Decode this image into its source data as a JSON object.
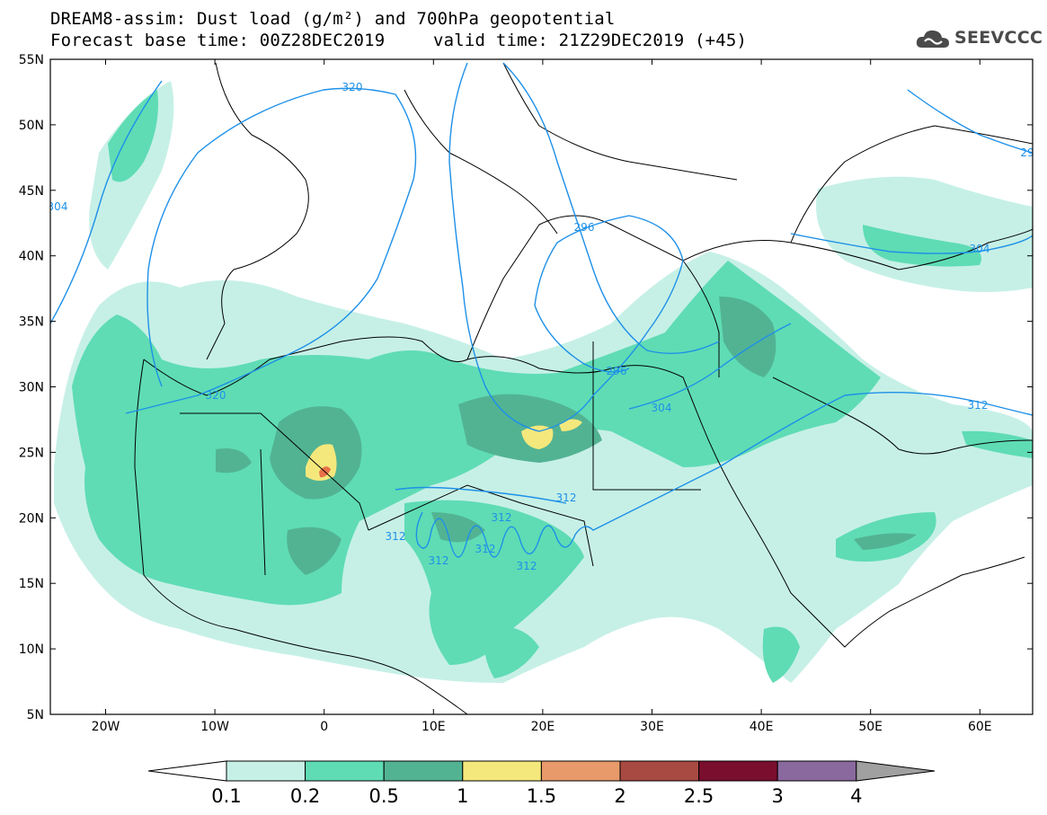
{
  "header": {
    "title": "DREAM8-assim: Dust load (g/m²) and 700hPa geopotential",
    "base_time": "Forecast base time: 00Z28DEC2019",
    "valid_time": "valid time: 21Z29DEC2019 (+45)"
  },
  "logo": {
    "text": "SEEVCCC",
    "icon": "cloud-icon"
  },
  "map": {
    "lat_labels": [
      "55N",
      "50N",
      "45N",
      "40N",
      "35N",
      "30N",
      "25N",
      "20N",
      "15N",
      "10N",
      "5N"
    ],
    "lon_labels": [
      "20W",
      "10W",
      "0",
      "10E",
      "20E",
      "30E",
      "40E",
      "50E",
      "60E"
    ],
    "contour_labels": [
      "320",
      "320",
      "304",
      "296",
      "296",
      "304",
      "304",
      "312",
      "312",
      "312",
      "312",
      "312",
      "312",
      "312",
      "29"
    ]
  },
  "colorbar": {
    "ticks": [
      "0.1",
      "0.2",
      "0.5",
      "1",
      "1.5",
      "2",
      "2.5",
      "3",
      "4"
    ],
    "colors": [
      "#ffffff",
      "#c6f0e6",
      "#5fdcb4",
      "#52b393",
      "#f4e87c",
      "#e89a6a",
      "#a94a42",
      "#7a0e2e",
      "#8a6a9e",
      "#a0a0a0"
    ]
  }
}
